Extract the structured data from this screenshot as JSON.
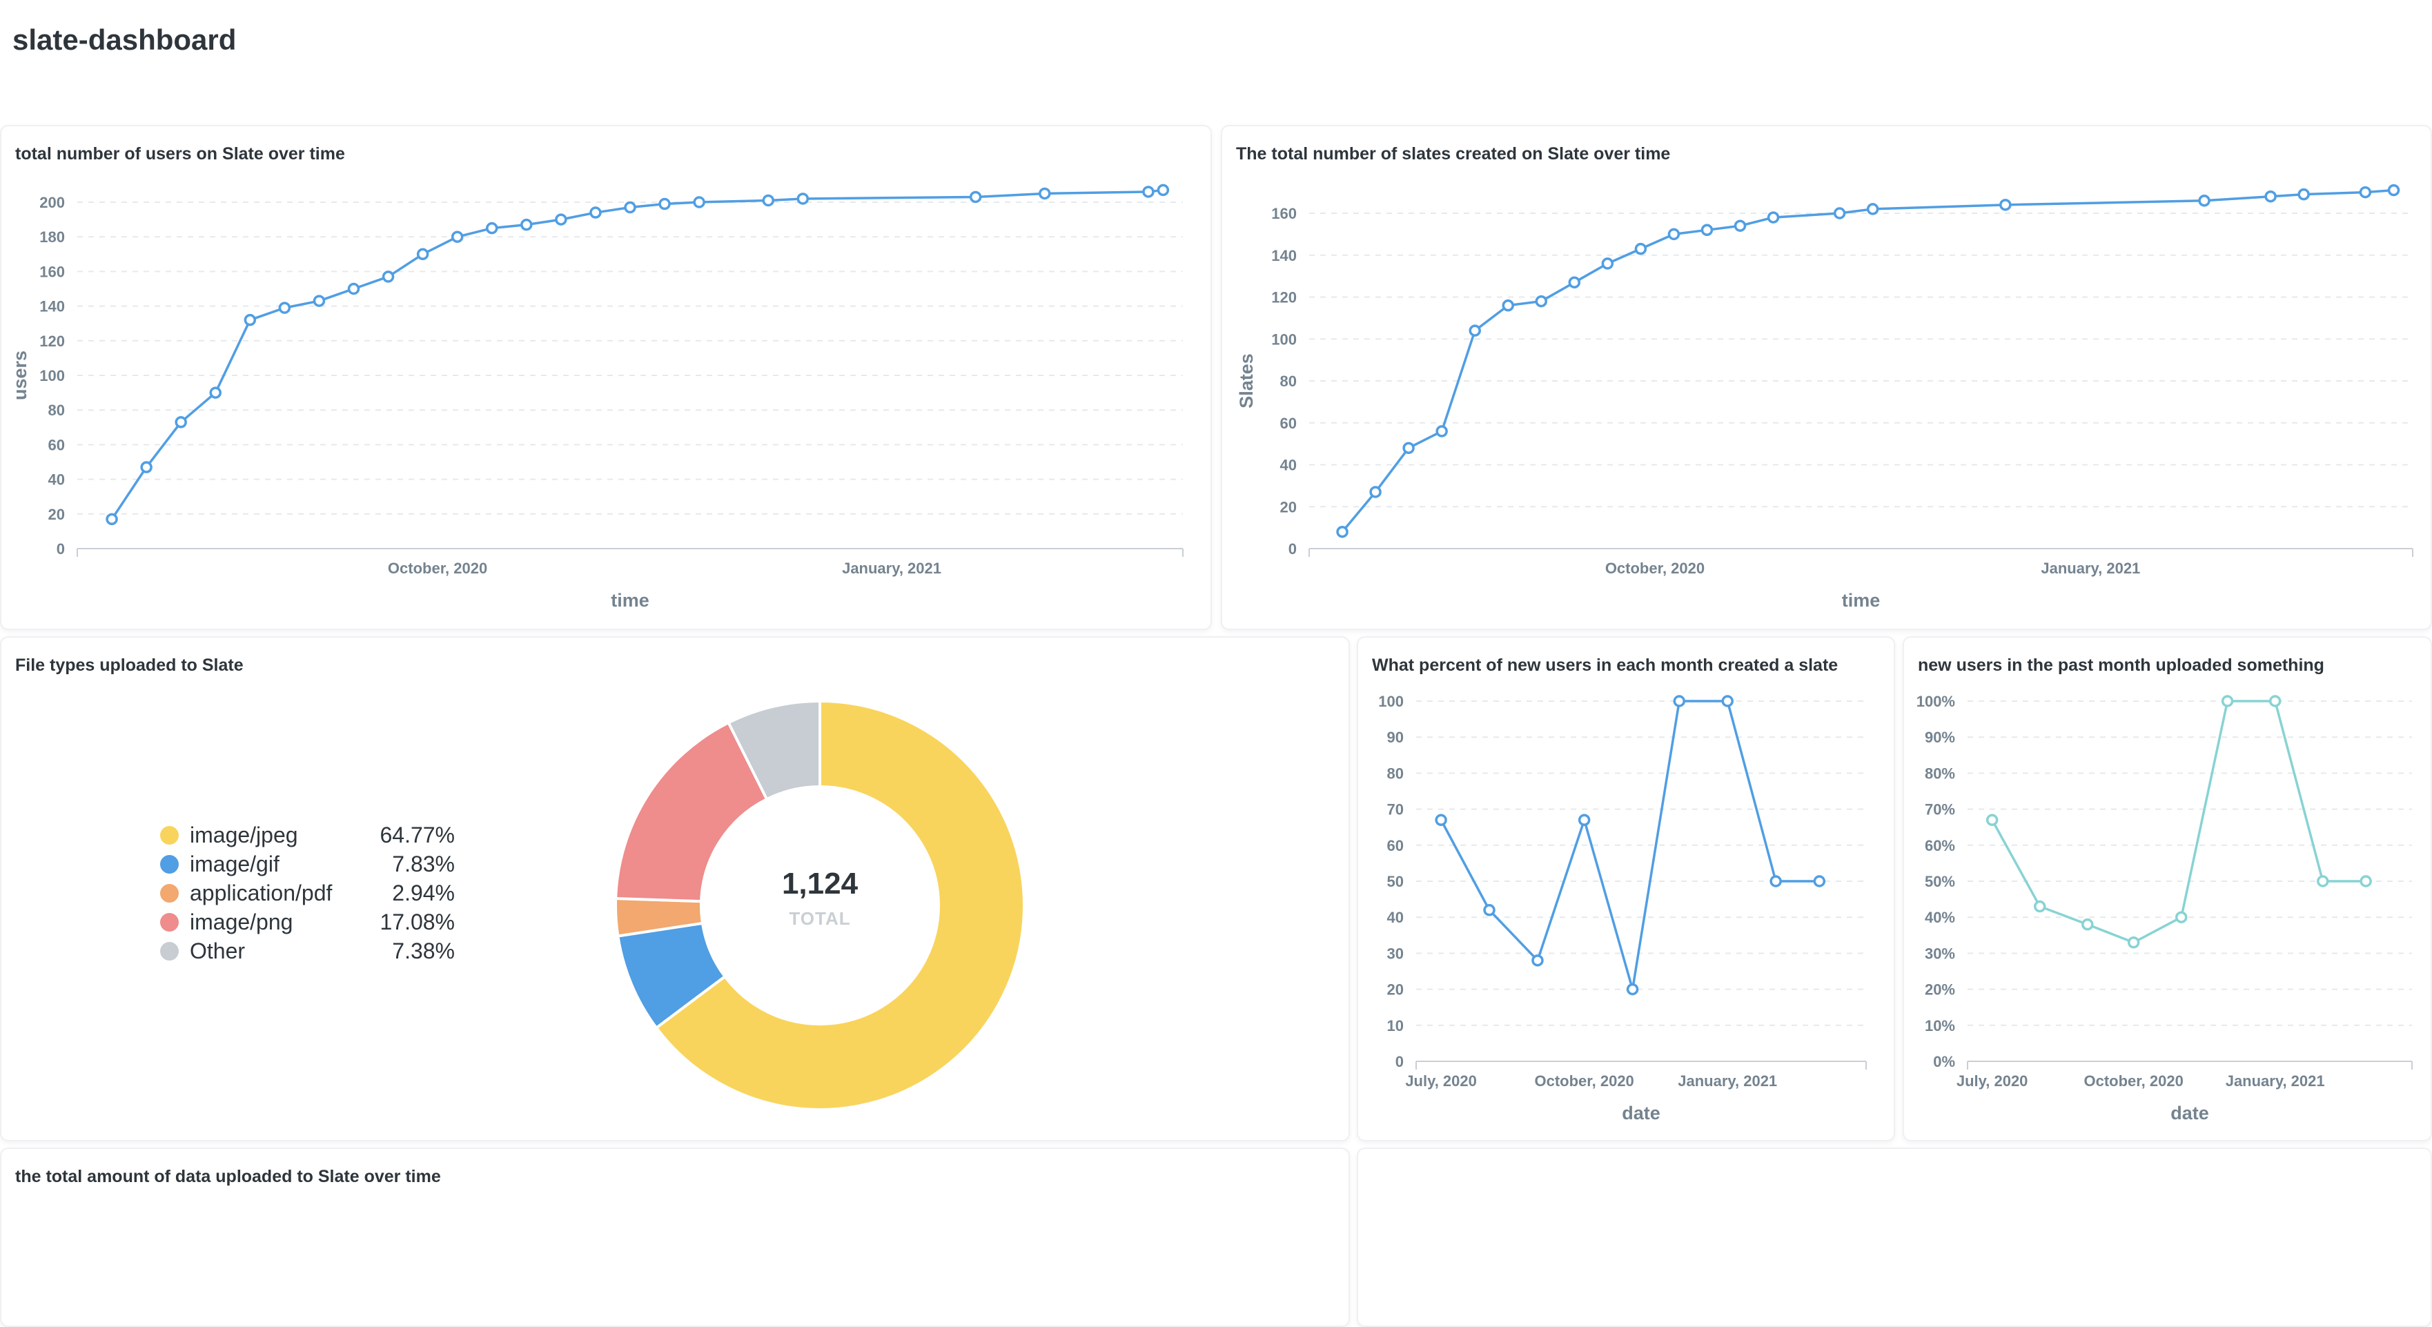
{
  "dashboard": {
    "title": "slate-dashboard"
  },
  "colors": {
    "line_blue": "#509ee3",
    "line_teal": "#88d3d3",
    "jpeg": "#f9d45c",
    "gif": "#509ee3",
    "pdf": "#f2a86f",
    "png": "#ef8c8c",
    "other": "#c7cdd2"
  },
  "cards": {
    "users": {
      "title": "total number of users on Slate over time",
      "xlabel": "time",
      "ylabel": "users",
      "x_ticks": [
        "October, 2020",
        "January, 2021"
      ]
    },
    "slates": {
      "title": "The total number of slates created on Slate over time",
      "xlabel": "time",
      "ylabel": "Slates",
      "x_ticks": [
        "October, 2020",
        "January, 2021"
      ]
    },
    "filetypes": {
      "title": "File types uploaded to Slate",
      "total": "1,124",
      "total_label": "TOTAL",
      "legend": [
        {
          "label": "image/jpeg",
          "pct": "64.77%"
        },
        {
          "label": "image/gif",
          "pct": "7.83%"
        },
        {
          "label": "application/pdf",
          "pct": "2.94%"
        },
        {
          "label": "image/png",
          "pct": "17.08%"
        },
        {
          "label": "Other",
          "pct": "7.38%"
        }
      ]
    },
    "percent_created": {
      "title": "What percent of new users in each month created a slate",
      "xlabel": "date",
      "x_ticks": [
        "July, 2020",
        "October, 2020",
        "January, 2021"
      ]
    },
    "uploaded": {
      "title": "new users in the past month uploaded something",
      "xlabel": "date",
      "x_ticks": [
        "July, 2020",
        "October, 2020",
        "January, 2021"
      ]
    },
    "data_uploaded": {
      "title": "the total amount of data uploaded to Slate over time"
    }
  },
  "chart_data": [
    {
      "id": "users",
      "type": "line",
      "title": "total number of users on Slate over time",
      "xlabel": "time",
      "ylabel": "users",
      "x": [
        "2020-07-27",
        "2020-08-03",
        "2020-08-10",
        "2020-08-17",
        "2020-08-24",
        "2020-08-31",
        "2020-09-07",
        "2020-09-14",
        "2020-09-21",
        "2020-09-28",
        "2020-10-05",
        "2020-10-12",
        "2020-10-19",
        "2020-10-26",
        "2020-11-02",
        "2020-11-09",
        "2020-11-16",
        "2020-11-23",
        "2020-12-07",
        "2020-12-14",
        "2021-01-18",
        "2021-02-01",
        "2021-02-22",
        "2021-02-25"
      ],
      "values": [
        17,
        47,
        73,
        90,
        132,
        139,
        143,
        150,
        157,
        170,
        180,
        185,
        187,
        190,
        194,
        197,
        199,
        200,
        201,
        202,
        203,
        205,
        206,
        207
      ],
      "ylim": [
        0,
        200
      ],
      "y_ticks": [
        0,
        20,
        40,
        60,
        80,
        100,
        120,
        140,
        160,
        180,
        200
      ],
      "grid": true
    },
    {
      "id": "slates",
      "type": "line",
      "title": "The total number of slates created on Slate over time",
      "xlabel": "time",
      "ylabel": "Slates",
      "x": [
        "2020-07-27",
        "2020-08-03",
        "2020-08-10",
        "2020-08-17",
        "2020-08-24",
        "2020-08-31",
        "2020-09-07",
        "2020-09-14",
        "2020-09-21",
        "2020-09-28",
        "2020-10-05",
        "2020-10-12",
        "2020-10-19",
        "2020-10-26",
        "2020-11-09",
        "2020-11-16",
        "2020-12-14",
        "2021-01-25",
        "2021-02-08",
        "2021-02-15",
        "2021-02-28",
        "2021-03-06"
      ],
      "values": [
        8,
        27,
        48,
        56,
        104,
        116,
        118,
        127,
        136,
        143,
        150,
        152,
        154,
        158,
        160,
        162,
        164,
        166,
        168,
        169,
        170,
        171
      ],
      "ylim": [
        0,
        160
      ],
      "y_ticks": [
        0,
        20,
        40,
        60,
        80,
        100,
        120,
        140,
        160
      ],
      "grid": true
    },
    {
      "id": "filetypes",
      "type": "pie",
      "title": "File types uploaded to Slate",
      "total": 1124,
      "categories": [
        "image/jpeg",
        "image/gif",
        "application/pdf",
        "image/png",
        "Other"
      ],
      "values": [
        64.77,
        7.83,
        2.94,
        17.08,
        7.38
      ],
      "legend": "left"
    },
    {
      "id": "percent_created",
      "type": "line",
      "title": "What percent of new users in each month created a slate",
      "xlabel": "date",
      "x": [
        "2020-07",
        "2020-08",
        "2020-09",
        "2020-10",
        "2020-11",
        "2020-12",
        "2021-01",
        "2021-02",
        "2021-03"
      ],
      "values": [
        67,
        42,
        28,
        67,
        20,
        100,
        100,
        50,
        50
      ],
      "ylim": [
        0,
        100
      ],
      "y_ticks": [
        0,
        10,
        20,
        30,
        40,
        50,
        60,
        70,
        80,
        90,
        100
      ],
      "grid": true
    },
    {
      "id": "uploaded",
      "type": "line",
      "title": "new users in the past month uploaded something",
      "xlabel": "date",
      "x": [
        "2020-07",
        "2020-08",
        "2020-09",
        "2020-10",
        "2020-11",
        "2020-12",
        "2021-01",
        "2021-02",
        "2021-03"
      ],
      "values": [
        67,
        43,
        38,
        33,
        40,
        100,
        100,
        50,
        50
      ],
      "ylim": [
        0,
        100
      ],
      "y_ticks": [
        "0%",
        "10%",
        "20%",
        "30%",
        "40%",
        "50%",
        "60%",
        "70%",
        "80%",
        "90%",
        "100%"
      ],
      "grid": true
    }
  ]
}
